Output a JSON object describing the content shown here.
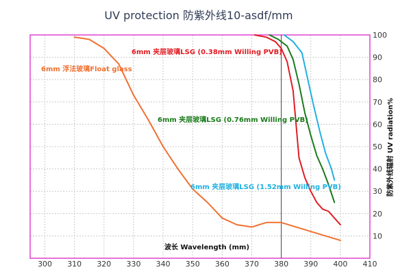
{
  "chart_data": {
    "type": "line",
    "title": "UV protection 防紫外线10-asdf/mm",
    "xlabel": "波长  Wavelength (mm)",
    "ylabel": "防紫外线辐射  UV radiation%",
    "xlim": [
      295,
      410
    ],
    "ylim": [
      0,
      100
    ],
    "x_ticks": [
      "300",
      "310",
      "320",
      "330",
      "340",
      "350",
      "360",
      "370",
      "380",
      "390",
      "400",
      "410"
    ],
    "y_ticks": [
      "10",
      "20",
      "30",
      "40",
      "50",
      "60",
      "70",
      "80",
      "90",
      "100"
    ],
    "grid": true,
    "marker_x": 380,
    "series": [
      {
        "name": "6mm 浮法玻璃Float glass",
        "color": "#f07030",
        "x": [
          310,
          315,
          320,
          325,
          330,
          335,
          340,
          345,
          350,
          355,
          360,
          365,
          370,
          375,
          380,
          385,
          390,
          395,
          400
        ],
        "y": [
          99,
          98,
          94,
          87,
          73,
          62,
          50,
          40,
          31,
          25,
          18,
          15,
          14,
          16,
          16,
          14,
          12,
          10,
          8
        ]
      },
      {
        "name": "6mm 夹层玻璃LSG (0.38mm Willing PVB)",
        "color": "#e01c24",
        "x": [
          371,
          375,
          378,
          380,
          382,
          384,
          386,
          388,
          390,
          392,
          394,
          396,
          398,
          400
        ],
        "y": [
          100,
          99,
          97,
          94,
          88,
          75,
          45,
          36,
          30,
          25,
          22,
          21,
          18,
          15
        ]
      },
      {
        "name": "6mm 夹层玻璃LSG (0.76mm Willing PVB)",
        "color": "#1a7a1a",
        "x": [
          376,
          379,
          382,
          384,
          386,
          388,
          390,
          392,
          394,
          396,
          398
        ],
        "y": [
          100,
          98,
          95,
          89,
          78,
          65,
          55,
          46,
          40,
          33,
          25
        ]
      },
      {
        "name": "6mm 夹层玻璃LSG (1.52mm Willing PVB)",
        "color": "#20b0e0",
        "x": [
          381,
          384,
          387,
          389,
          391,
          393,
          395,
          397,
          398
        ],
        "y": [
          100,
          97,
          92,
          80,
          68,
          57,
          47,
          40,
          35
        ]
      }
    ]
  }
}
